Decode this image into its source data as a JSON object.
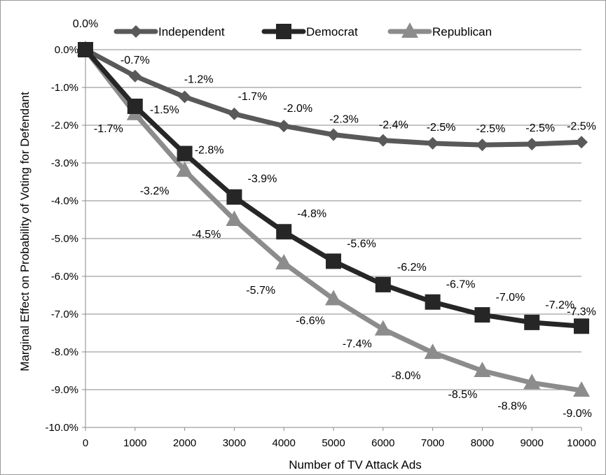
{
  "chart_data": {
    "type": "line",
    "title": "",
    "xlabel": "Number of TV Attack Ads",
    "ylabel": "Marginal Effect on Probability of Voting for Defendant",
    "x": [
      0,
      1000,
      2000,
      3000,
      4000,
      5000,
      6000,
      7000,
      8000,
      9000,
      10000
    ],
    "x_tick_labels": [
      "0",
      "1000",
      "2000",
      "3000",
      "4000",
      "5000",
      "6000",
      "7000",
      "8000",
      "9000",
      "10000"
    ],
    "y_tick_labels": [
      "0.0%",
      "-1.0%",
      "-2.0%",
      "-3.0%",
      "-4.0%",
      "-5.0%",
      "-6.0%",
      "-7.0%",
      "-8.0%",
      "-9.0%",
      "-10.0%"
    ],
    "xlim": [
      0,
      10000
    ],
    "ylim": [
      -10.0,
      0.0
    ],
    "y_unit": "percent",
    "grid": "horizontal",
    "legend_position": "top",
    "series": [
      {
        "name": "Independent",
        "marker": "diamond",
        "color": "#595959",
        "values": [
          0.0,
          -0.7,
          -1.25,
          -1.7,
          -2.02,
          -2.25,
          -2.4,
          -2.48,
          -2.52,
          -2.5,
          -2.45
        ],
        "labels": [
          "0.0%",
          "-0.7%",
          "-1.2%",
          "-1.7%",
          "-2.0%",
          "-2.3%",
          "-2.4%",
          "-2.5%",
          "-2.5%",
          "-2.5%",
          "-2.5%"
        ]
      },
      {
        "name": "Democrat",
        "marker": "square",
        "color": "#262626",
        "values": [
          0.0,
          -1.5,
          -2.75,
          -3.9,
          -4.82,
          -5.6,
          -6.22,
          -6.68,
          -7.02,
          -7.22,
          -7.32
        ],
        "labels": [
          "",
          "-1.5%",
          "-2.8%",
          "-3.9%",
          "-4.8%",
          "-5.6%",
          "-6.2%",
          "-6.7%",
          "-7.0%",
          "-7.2%",
          "-7.3%"
        ]
      },
      {
        "name": "Republican",
        "marker": "triangle",
        "color": "#8c8c8c",
        "values": [
          0.0,
          -1.7,
          -3.2,
          -4.5,
          -5.65,
          -6.6,
          -7.4,
          -8.02,
          -8.5,
          -8.82,
          -9.02
        ],
        "labels": [
          "",
          "-1.7%",
          "-3.2%",
          "-4.5%",
          "-5.7%",
          "-6.6%",
          "-7.4%",
          "-8.0%",
          "-8.5%",
          "-8.8%",
          "-9.0%"
        ]
      }
    ]
  }
}
